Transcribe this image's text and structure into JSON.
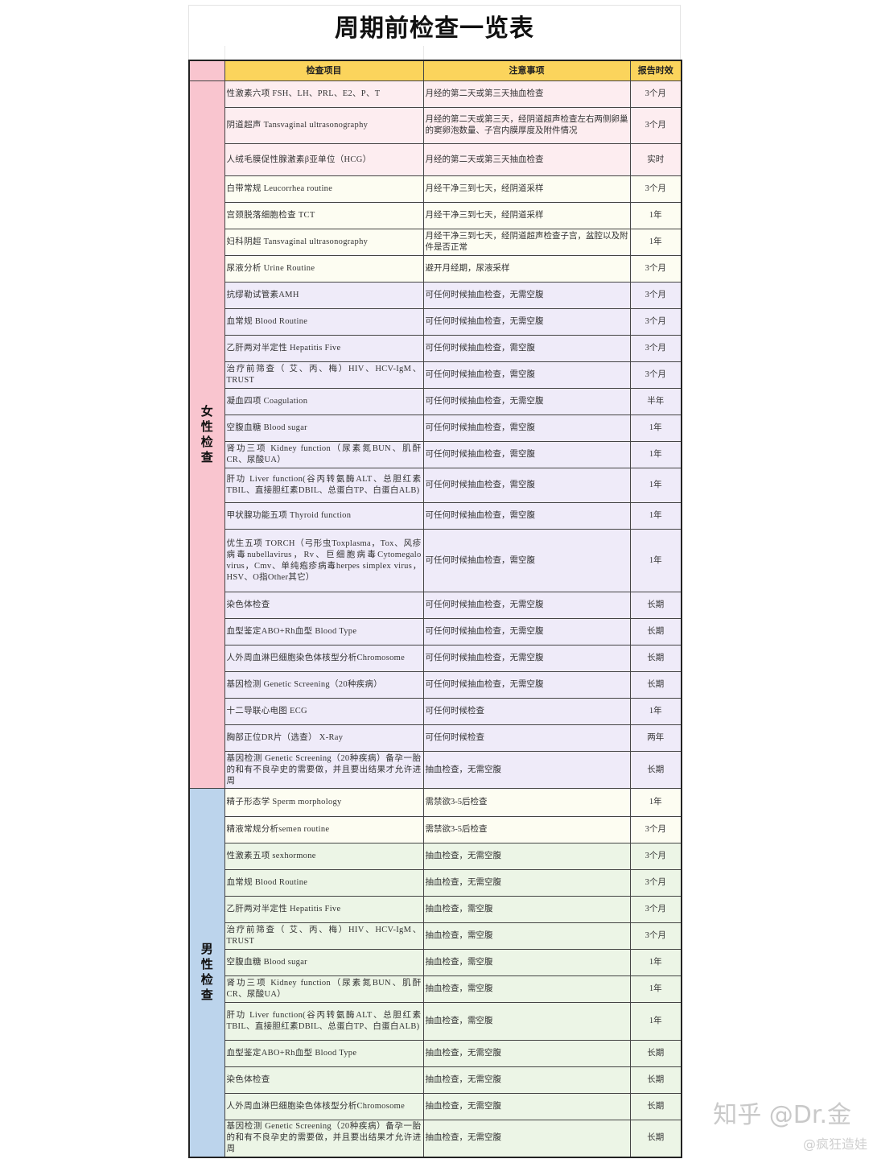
{
  "title": "周期前检查一览表",
  "colors": {
    "header": "#fbd45c",
    "female_group": "#f9c5cf",
    "male_group": "#bcd4ec",
    "pink": "#fdedf0",
    "cream": "#fdfdf2",
    "lavender": "#efebf9",
    "green": "#ecf5e6"
  },
  "headers": {
    "item": "检查项目",
    "note": "注意事项",
    "period": "报告时效"
  },
  "female": {
    "label": [
      "女",
      "性",
      "检",
      "查"
    ],
    "rows": [
      {
        "item": "性激素六项 FSH、LH、PRL、E2、P、T",
        "note": "月经的第二天或第三天抽血检查",
        "period": "3个月",
        "tone": "pink"
      },
      {
        "item": "阴道超声  Tansvaginal ultrasonography",
        "note": "月经的第二天或第三天，经阴道超声检查左右两侧卵巢的窦卵泡数量、子宫内膜厚度及附件情况",
        "period": "3个月",
        "tone": "pink"
      },
      {
        "item": "人绒毛膜促性腺激素β亚单位（HCG）",
        "note": "月经的第二天或第三天抽血检查",
        "period": "实时",
        "tone": "pink"
      },
      {
        "item": "白带常规 Leucorrhea routine",
        "note": "月经干净三到七天，经阴道采样",
        "period": "3个月",
        "tone": "cream"
      },
      {
        "item": "宫颈脱落细胞检查 TCT",
        "note": "月经干净三到七天，经阴道采样",
        "period": "1年",
        "tone": "cream"
      },
      {
        "item": "妇科阴超 Tansvaginal ultrasonography",
        "note": "月经干净三到七天，经阴道超声检查子宫，盆腔以及附件是否正常",
        "period": "1年",
        "tone": "cream"
      },
      {
        "item": "尿液分析 Urine Routine",
        "note": "避开月经期，尿液采样",
        "period": "3个月",
        "tone": "cream"
      },
      {
        "item": "抗缪勒试管素AMH",
        "note": "可任何时候抽血检查，无需空腹",
        "period": "3个月",
        "tone": "lavender"
      },
      {
        "item": "血常规 Blood Routine",
        "note": "可任何时候抽血检查，无需空腹",
        "period": "3个月",
        "tone": "lavender"
      },
      {
        "item": "乙肝两对半定性 Hepatitis Five",
        "note": "可任何时候抽血检查，需空腹",
        "period": "3个月",
        "tone": "lavender"
      },
      {
        "item": "治疗前筛查（ 艾、丙、梅）HIV、HCV-IgM、TRUST",
        "note": "可任何时候抽血检查，需空腹",
        "period": "3个月",
        "tone": "lavender"
      },
      {
        "item": "凝血四项 Coagulation",
        "note": "可任何时候抽血检查，无需空腹",
        "period": "半年",
        "tone": "lavender"
      },
      {
        "item": "空腹血糖 Blood sugar",
        "note": "可任何时候抽血检查，需空腹",
        "period": "1年",
        "tone": "lavender"
      },
      {
        "item": "肾功三项 Kidney function（尿素氮BUN、肌酐CR、尿酸UA）",
        "note": "可任何时候抽血检查，需空腹",
        "period": "1年",
        "tone": "lavender"
      },
      {
        "item": "肝功 Liver function(谷丙转氨酶ALT、总胆红素TBIL、直接胆红素DBIL、总蛋白TP、白蛋白ALB)",
        "note": "可任何时候抽血检查，需空腹",
        "period": "1年",
        "tone": "lavender"
      },
      {
        "item": "甲状腺功能五项 Thyroid function",
        "note": "可任何时候抽血检查，需空腹",
        "period": "1年",
        "tone": "lavender"
      },
      {
        "item": "优生五项 TORCH（弓形虫Toxplasma，Tox、风疹病毒nubellavirus，Rv、巨细胞病毒Cytomegalo virus，Cmv、单纯疱疹病毒herpes simplex virus，HSV、O指Other其它）",
        "note": "可任何时候抽血检查，需空腹",
        "period": "1年",
        "tone": "lavender"
      },
      {
        "item": "染色体检查",
        "note": "可任何时候抽血检查，无需空腹",
        "period": "长期",
        "tone": "lavender"
      },
      {
        "item": "血型鉴定ABO+Rh血型  Blood Type",
        "note": "可任何时候抽血检查，无需空腹",
        "period": "长期",
        "tone": "lavender"
      },
      {
        "item": "人外周血淋巴细胞染色体核型分析Chromosome",
        "note": "可任何时候抽血检查，无需空腹",
        "period": "长期",
        "tone": "lavender"
      },
      {
        "item": "基因检测 Genetic Screening（20种疾病）",
        "note": "可任何时候抽血检查，无需空腹",
        "period": "长期",
        "tone": "lavender"
      },
      {
        "item": "十二导联心电图  ECG",
        "note": "可任何时候检查",
        "period": "1年",
        "tone": "lavender"
      },
      {
        "item": "胸部正位DR片（选查） X-Ray",
        "note": "可任何时候检查",
        "period": "两年",
        "tone": "lavender"
      },
      {
        "item": "基因检测 Genetic Screening（20种疾病）备孕一胎的和有不良孕史的需要做，并且要出结果才允许进周",
        "note": "抽血检查，无需空腹",
        "period": "长期",
        "tone": "lavender"
      }
    ]
  },
  "male": {
    "label": [
      "男",
      "性",
      "检",
      "查"
    ],
    "rows": [
      {
        "item": "精子形态学 Sperm morphology",
        "note": "需禁欲3-5后检查",
        "period": "1年",
        "tone": "cream"
      },
      {
        "item": "精液常规分析semen routine",
        "note": "需禁欲3-5后检查",
        "period": "3个月",
        "tone": "cream"
      },
      {
        "item": "性激素五项 sexhormone",
        "note": "抽血检查，无需空腹",
        "period": "3个月",
        "tone": "green"
      },
      {
        "item": "血常规 Blood Routine",
        "note": "抽血检查，无需空腹",
        "period": "3个月",
        "tone": "green"
      },
      {
        "item": "乙肝两对半定性 Hepatitis Five",
        "note": "抽血检查，需空腹",
        "period": "3个月",
        "tone": "green"
      },
      {
        "item": "治疗前筛查（ 艾、丙、梅）HIV、HCV-IgM、TRUST",
        "note": "抽血检查，需空腹",
        "period": "3个月",
        "tone": "green"
      },
      {
        "item": "空腹血糖 Blood sugar",
        "note": "抽血检查，需空腹",
        "period": "1年",
        "tone": "green"
      },
      {
        "item": "肾功三项 Kidney function（尿素氮BUN、肌酐CR、尿酸UA）",
        "note": "抽血检查，需空腹",
        "period": "1年",
        "tone": "green"
      },
      {
        "item": "肝功 Liver function(谷丙转氨酶ALT、总胆红素TBIL、直接胆红素DBIL、总蛋白TP、白蛋白ALB)",
        "note": "抽血检查，需空腹",
        "period": "1年",
        "tone": "green"
      },
      {
        "item": "血型鉴定ABO+Rh血型  Blood Type",
        "note": "抽血检查，无需空腹",
        "period": "长期",
        "tone": "green"
      },
      {
        "item": "染色体检查",
        "note": "抽血检查，无需空腹",
        "period": "长期",
        "tone": "green"
      },
      {
        "item": "人外周血淋巴细胞染色体核型分析Chromosome",
        "note": "抽血检查，无需空腹",
        "period": "长期",
        "tone": "green"
      },
      {
        "item": "基因检测 Genetic Screening（20种疾病）备孕一胎的和有不良孕史的需要做，并且要出结果才允许进周",
        "note": "抽血检查，无需空腹",
        "period": "长期",
        "tone": "green"
      }
    ]
  },
  "watermark": {
    "main": "知乎 @Dr.金",
    "sub": "@疯狂造娃"
  }
}
